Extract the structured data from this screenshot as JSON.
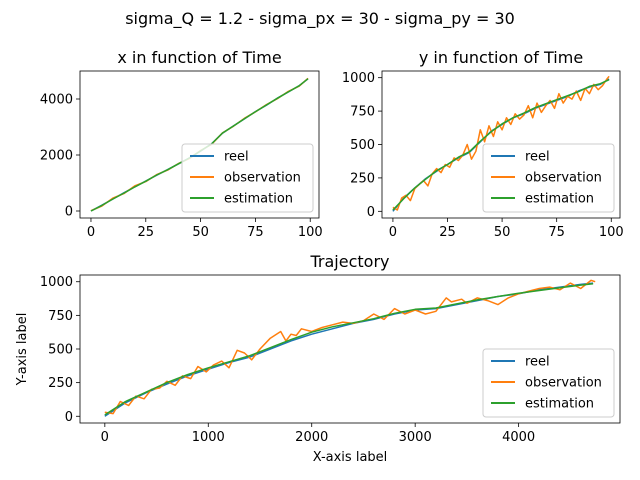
{
  "figure": {
    "suptitle": "sigma_Q = 1.2 - sigma_px = 30 - sigma_py = 30"
  },
  "chart_data": [
    {
      "type": "line",
      "title": "x in function of Time",
      "xlabel": "",
      "ylabel": "",
      "xlim": [
        -5,
        104
      ],
      "ylim": [
        -250,
        5000
      ],
      "xticks": [
        0,
        25,
        50,
        75,
        100
      ],
      "yticks": [
        0,
        2000,
        4000
      ],
      "grid": false,
      "legend_position": "lower right",
      "legend": [
        "reel",
        "observation",
        "estimation"
      ],
      "series": [
        {
          "name": "reel",
          "color": "#1f77b4",
          "x": [
            0,
            5,
            10,
            15,
            20,
            25,
            30,
            35,
            40,
            45,
            50,
            55,
            60,
            65,
            70,
            75,
            80,
            85,
            90,
            95,
            99
          ],
          "y": [
            0,
            210,
            430,
            650,
            860,
            1070,
            1280,
            1480,
            1690,
            1900,
            2140,
            2400,
            2780,
            3040,
            3290,
            3550,
            3780,
            4030,
            4250,
            4480,
            4720
          ]
        },
        {
          "name": "observation",
          "color": "#ff7f0e",
          "x": [
            0,
            5,
            10,
            15,
            20,
            25,
            30,
            35,
            40,
            45,
            50,
            55,
            60,
            65,
            70,
            75,
            80,
            85,
            90,
            95,
            99
          ],
          "y": [
            10,
            180,
            460,
            620,
            900,
            1050,
            1300,
            1460,
            1700,
            1880,
            2160,
            2380,
            2790,
            3030,
            3310,
            3540,
            3800,
            4010,
            4270,
            4460,
            4740
          ]
        },
        {
          "name": "estimation",
          "color": "#2ca02c",
          "x": [
            0,
            5,
            10,
            15,
            20,
            25,
            30,
            35,
            40,
            45,
            50,
            55,
            60,
            65,
            70,
            75,
            80,
            85,
            90,
            95,
            99
          ],
          "y": [
            0,
            200,
            430,
            640,
            860,
            1065,
            1285,
            1475,
            1690,
            1895,
            2145,
            2395,
            2785,
            3035,
            3295,
            3545,
            3785,
            4025,
            4255,
            4475,
            4725
          ]
        }
      ]
    },
    {
      "type": "line",
      "title": "y in function of Time",
      "xlabel": "",
      "ylabel": "",
      "xlim": [
        -5,
        104
      ],
      "ylim": [
        -50,
        1050
      ],
      "xticks": [
        0,
        25,
        50,
        75,
        100
      ],
      "yticks": [
        0,
        250,
        500,
        750,
        1000
      ],
      "grid": false,
      "legend_position": "lower right",
      "legend": [
        "reel",
        "observation",
        "estimation"
      ],
      "series": [
        {
          "name": "reel",
          "color": "#1f77b4",
          "x": [
            0,
            5,
            10,
            15,
            20,
            25,
            30,
            35,
            40,
            45,
            50,
            55,
            60,
            65,
            70,
            75,
            80,
            85,
            90,
            95,
            99
          ],
          "y": [
            0,
            100,
            175,
            245,
            300,
            350,
            400,
            440,
            520,
            600,
            650,
            700,
            730,
            770,
            800,
            830,
            860,
            900,
            930,
            950,
            990
          ]
        },
        {
          "name": "observation",
          "color": "#ff7f0e",
          "x": [
            0,
            2,
            4,
            6,
            8,
            10,
            12,
            14,
            16,
            18,
            20,
            22,
            24,
            26,
            28,
            30,
            32,
            34,
            36,
            38,
            40,
            42,
            44,
            46,
            48,
            50,
            52,
            54,
            56,
            58,
            60,
            62,
            64,
            66,
            68,
            70,
            72,
            74,
            76,
            78,
            80,
            82,
            84,
            86,
            88,
            90,
            92,
            94,
            96,
            98,
            99
          ],
          "y": [
            30,
            10,
            100,
            120,
            80,
            170,
            200,
            230,
            190,
            280,
            320,
            290,
            350,
            330,
            400,
            380,
            420,
            500,
            390,
            450,
            610,
            520,
            640,
            560,
            670,
            610,
            700,
            650,
            730,
            690,
            720,
            790,
            700,
            810,
            740,
            790,
            830,
            770,
            880,
            810,
            860,
            840,
            900,
            830,
            920,
            880,
            950,
            910,
            940,
            990,
            1010
          ]
        },
        {
          "name": "estimation",
          "color": "#2ca02c",
          "x": [
            0,
            5,
            10,
            15,
            20,
            25,
            30,
            35,
            40,
            45,
            50,
            55,
            60,
            65,
            70,
            75,
            80,
            85,
            90,
            95,
            99
          ],
          "y": [
            10,
            95,
            175,
            240,
            305,
            350,
            405,
            445,
            525,
            595,
            655,
            700,
            735,
            775,
            805,
            835,
            865,
            895,
            935,
            955,
            985
          ]
        }
      ]
    },
    {
      "type": "line",
      "title": "Trajectory",
      "xlabel": "X-axis label",
      "ylabel": "Y-axis label",
      "xlim": [
        -240,
        4980
      ],
      "ylim": [
        -50,
        1050
      ],
      "xticks": [
        0,
        1000,
        2000,
        3000,
        4000
      ],
      "yticks": [
        0,
        250,
        500,
        750,
        1000
      ],
      "grid": false,
      "legend_position": "lower right",
      "legend": [
        "reel",
        "observation",
        "estimation"
      ],
      "series": [
        {
          "name": "reel",
          "color": "#1f77b4",
          "x": [
            0,
            200,
            400,
            600,
            800,
            1000,
            1200,
            1400,
            1600,
            1800,
            2000,
            2200,
            2400,
            2600,
            2800,
            3000,
            3200,
            3400,
            3600,
            3800,
            4000,
            4200,
            4400,
            4600,
            4720
          ],
          "y": [
            0,
            100,
            175,
            240,
            300,
            350,
            400,
            440,
            500,
            560,
            610,
            650,
            690,
            720,
            760,
            790,
            800,
            830,
            860,
            890,
            910,
            940,
            960,
            980,
            990
          ]
        },
        {
          "name": "observation",
          "color": "#ff7f0e",
          "x": [
            0,
            80,
            150,
            230,
            300,
            380,
            450,
            530,
            600,
            680,
            750,
            830,
            900,
            980,
            1050,
            1130,
            1200,
            1280,
            1350,
            1420,
            1500,
            1600,
            1700,
            1750,
            1800,
            1850,
            1900,
            2000,
            2100,
            2200,
            2300,
            2400,
            2500,
            2600,
            2700,
            2800,
            2900,
            3000,
            3100,
            3200,
            3300,
            3350,
            3450,
            3500,
            3600,
            3700,
            3800,
            3900,
            4000,
            4100,
            4200,
            4300,
            4400,
            4500,
            4600,
            4700,
            4740
          ],
          "y": [
            30,
            20,
            110,
            80,
            150,
            130,
            200,
            210,
            260,
            230,
            300,
            280,
            370,
            330,
            380,
            410,
            360,
            490,
            470,
            420,
            500,
            580,
            630,
            560,
            610,
            600,
            650,
            630,
            660,
            680,
            700,
            690,
            710,
            760,
            720,
            800,
            760,
            790,
            760,
            780,
            880,
            850,
            870,
            840,
            880,
            860,
            830,
            880,
            910,
            930,
            950,
            960,
            940,
            990,
            950,
            1010,
            1000
          ]
        },
        {
          "name": "estimation",
          "color": "#2ca02c",
          "x": [
            0,
            200,
            400,
            600,
            800,
            1000,
            1200,
            1400,
            1600,
            1800,
            2000,
            2200,
            2400,
            2600,
            2800,
            3000,
            3200,
            3400,
            3600,
            3800,
            4000,
            4200,
            4400,
            4600,
            4720
          ],
          "y": [
            10,
            110,
            180,
            250,
            310,
            360,
            405,
            450,
            510,
            570,
            625,
            665,
            695,
            725,
            765,
            795,
            805,
            835,
            865,
            890,
            915,
            935,
            955,
            975,
            985
          ]
        }
      ]
    }
  ]
}
